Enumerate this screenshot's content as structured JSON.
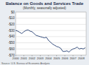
{
  "chart_data": {
    "type": "line",
    "title": "Balance on Goods and Services Trade",
    "subtitle": "(Monthly, seasonally adjusted)",
    "annotations": [
      "Source: U.S. Bureau of Economic Analysis"
    ],
    "x": [
      2000,
      2000.25,
      2000.5,
      2000.75,
      2001,
      2001.25,
      2001.5,
      2001.75,
      2002,
      2002.25,
      2002.5,
      2002.75,
      2003,
      2003.25,
      2003.5,
      2003.75,
      2004,
      2004.25,
      2004.5,
      2004.75,
      2005,
      2005.25,
      2005.5,
      2005.75,
      2006,
      2006.25,
      2006.5,
      2006.75,
      2007,
      2007.25,
      2007.5,
      2007.75,
      2008,
      2008.25,
      2008.5
    ],
    "series": [
      {
        "name": "Balance",
        "color": "#1f3a6e",
        "values": [
          -30,
          -31,
          -33,
          -35,
          -32,
          -30,
          -29,
          -31,
          -32,
          -35,
          -38,
          -39,
          -40,
          -41,
          -42,
          -41,
          -46,
          -49,
          -52,
          -54,
          -56,
          -57,
          -59,
          -64,
          -64,
          -63,
          -65,
          -62,
          -60,
          -59,
          -57,
          -60,
          -59,
          -60,
          -58
        ]
      }
    ],
    "xlim": [
      2000,
      2008.6
    ],
    "xticks": [
      2000,
      2001,
      2002,
      2003,
      2004,
      2005,
      2006,
      2007,
      2008
    ],
    "ylim": [
      -70,
      0
    ],
    "yticks": [
      {
        "value": 0,
        "label": "$0"
      },
      {
        "value": -10,
        "label": "-$10"
      },
      {
        "value": -20,
        "label": "-$20"
      },
      {
        "value": -30,
        "label": "-$30"
      },
      {
        "value": -40,
        "label": "-$40"
      },
      {
        "value": -50,
        "label": "-$50"
      },
      {
        "value": -60,
        "label": "-$60"
      },
      {
        "value": -70,
        "label": "-$70"
      }
    ],
    "grid": true
  }
}
